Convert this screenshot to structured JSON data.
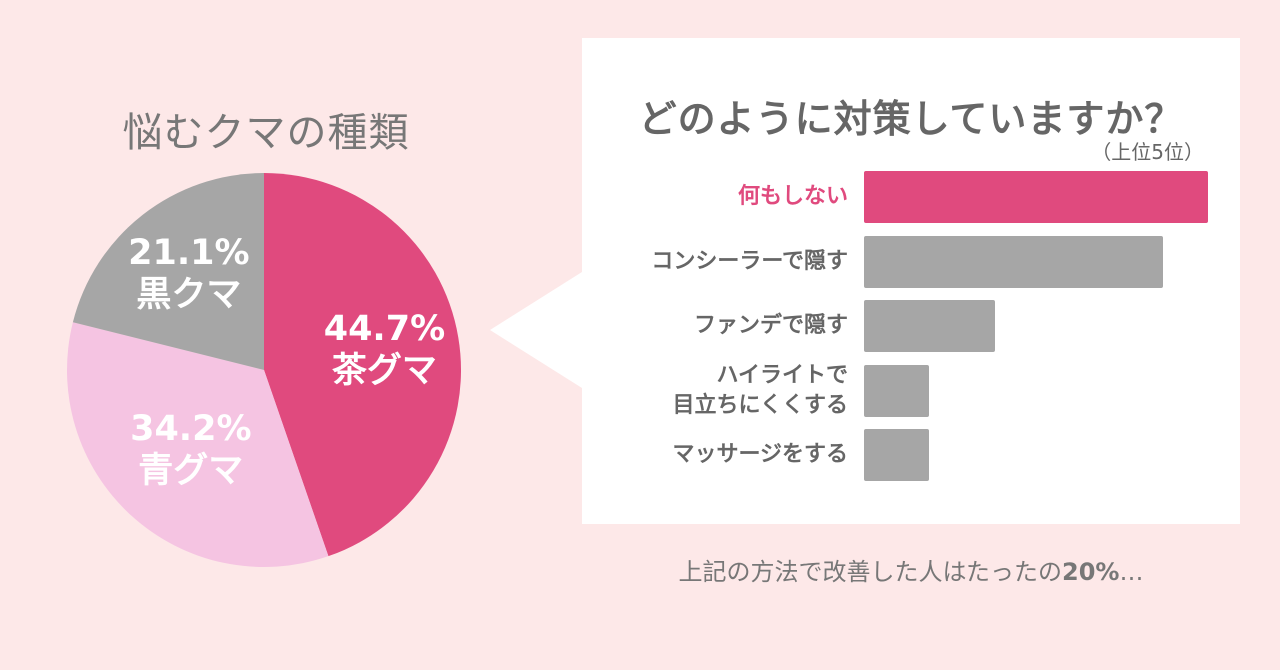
{
  "chart_data": [
    {
      "type": "pie",
      "title": "悩むクマの種類",
      "slices": [
        {
          "name": "茶グマ",
          "value": 44.7,
          "label": "44.7%",
          "color": "#e04a7e"
        },
        {
          "name": "青グマ",
          "value": 34.2,
          "label": "34.2%",
          "color": "#f5c4e2"
        },
        {
          "name": "黒クマ",
          "value": 21.1,
          "label": "21.1%",
          "color": "#a6a6a6"
        }
      ]
    },
    {
      "type": "bar",
      "title": "どのように対策していますか？",
      "subtitle": "（上位5位）",
      "orientation": "horizontal",
      "categories": [
        "何もしない",
        "コンシーラーで隠す",
        "ファンデで隠す",
        "ハイライトで\n目立ちにくくする",
        "マッサージをする"
      ],
      "category_lines": [
        [
          "何もしない"
        ],
        [
          "コンシーラーで隠す"
        ],
        [
          "ファンデで隠す"
        ],
        [
          "ハイライトで",
          "目立ちにくくする"
        ],
        [
          "マッサージをする"
        ]
      ],
      "values": [
        100,
        87,
        38,
        19,
        19
      ],
      "highlight_index": 0,
      "colors": {
        "highlight": "#e04a7e",
        "default": "#a6a6a6"
      }
    }
  ],
  "footnote": {
    "text": "上記の方法で改善した人はたったの",
    "emphasis": "20%",
    "suffix": "…"
  }
}
